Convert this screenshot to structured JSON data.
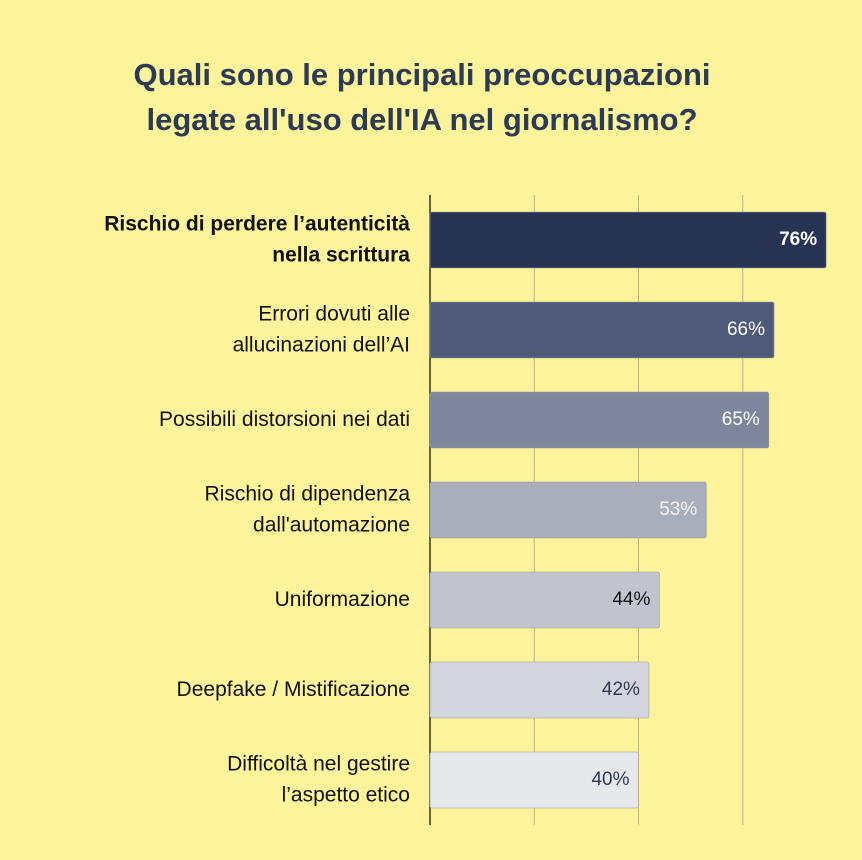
{
  "chart_data": {
    "type": "barh",
    "title": [
      "Quali sono le principali preoccupazioni",
      "legate all'uso dell'IA nel giornalismo?"
    ],
    "categories": [
      [
        "Rischio di perdere l’autenticità",
        "nella scrittura"
      ],
      [
        "Errori dovuti alle",
        "allucinazioni dell’AI"
      ],
      [
        "Possibili distorsioni nei dati"
      ],
      [
        "Rischio di dipendenza",
        "dall'automazione"
      ],
      [
        "Uniformazione"
      ],
      [
        "Deepfake / Mistificazione"
      ],
      [
        "Difficoltà nel gestire",
        "l’aspetto etico"
      ]
    ],
    "values": [
      76,
      66,
      65,
      53,
      44,
      42,
      40
    ],
    "value_labels": [
      "76%",
      "66%",
      "65%",
      "53%",
      "44%",
      "42%",
      "40%"
    ],
    "colors": [
      "#263352",
      "#4f5a78",
      "#7d869d",
      "#a9aebd",
      "#c1c4cf",
      "#d4d6dd",
      "#e7e8eb"
    ],
    "label_colors": [
      "#ffffff",
      "#ffffff",
      "#ffffff",
      "#f4f4f6",
      "#111111",
      "#2b3a55",
      "#2b3a55"
    ],
    "highlight": 0,
    "xlim": [
      0,
      80
    ],
    "xticks": [
      0,
      20,
      40,
      60
    ],
    "grid": true
  }
}
